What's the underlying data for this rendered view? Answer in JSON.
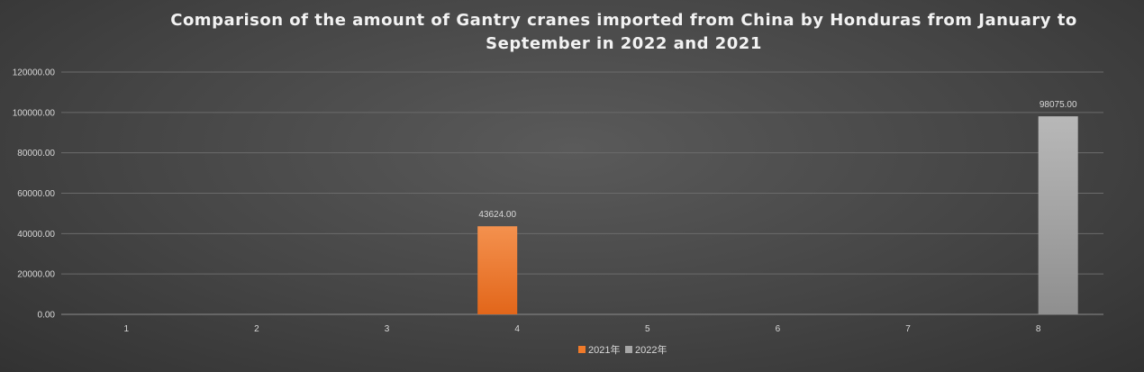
{
  "chart_data": {
    "type": "bar",
    "title": "Comparison of the amount of Gantry cranes imported from China by Honduras from January to September in 2022 and 2021",
    "categories": [
      "1",
      "2",
      "3",
      "4",
      "5",
      "6",
      "7",
      "8"
    ],
    "series": [
      {
        "name": "2021年",
        "color": "#f07a2a",
        "values": [
          0,
          0,
          0,
          43624.0,
          0,
          0,
          0,
          0
        ]
      },
      {
        "name": "2022年",
        "color": "#a6a6a6",
        "values": [
          0,
          0,
          0,
          0,
          0,
          0,
          0,
          98075.0
        ]
      }
    ],
    "data_labels": [
      {
        "series": 0,
        "category": "4",
        "text": "43624.00"
      },
      {
        "series": 1,
        "category": "8",
        "text": "98075.00"
      }
    ],
    "yticks": [
      "0.00",
      "20000.00",
      "40000.00",
      "60000.00",
      "80000.00",
      "100000.00",
      "120000.00"
    ],
    "ylim": [
      0,
      120000
    ],
    "grid": true,
    "legend_position": "bottom"
  }
}
